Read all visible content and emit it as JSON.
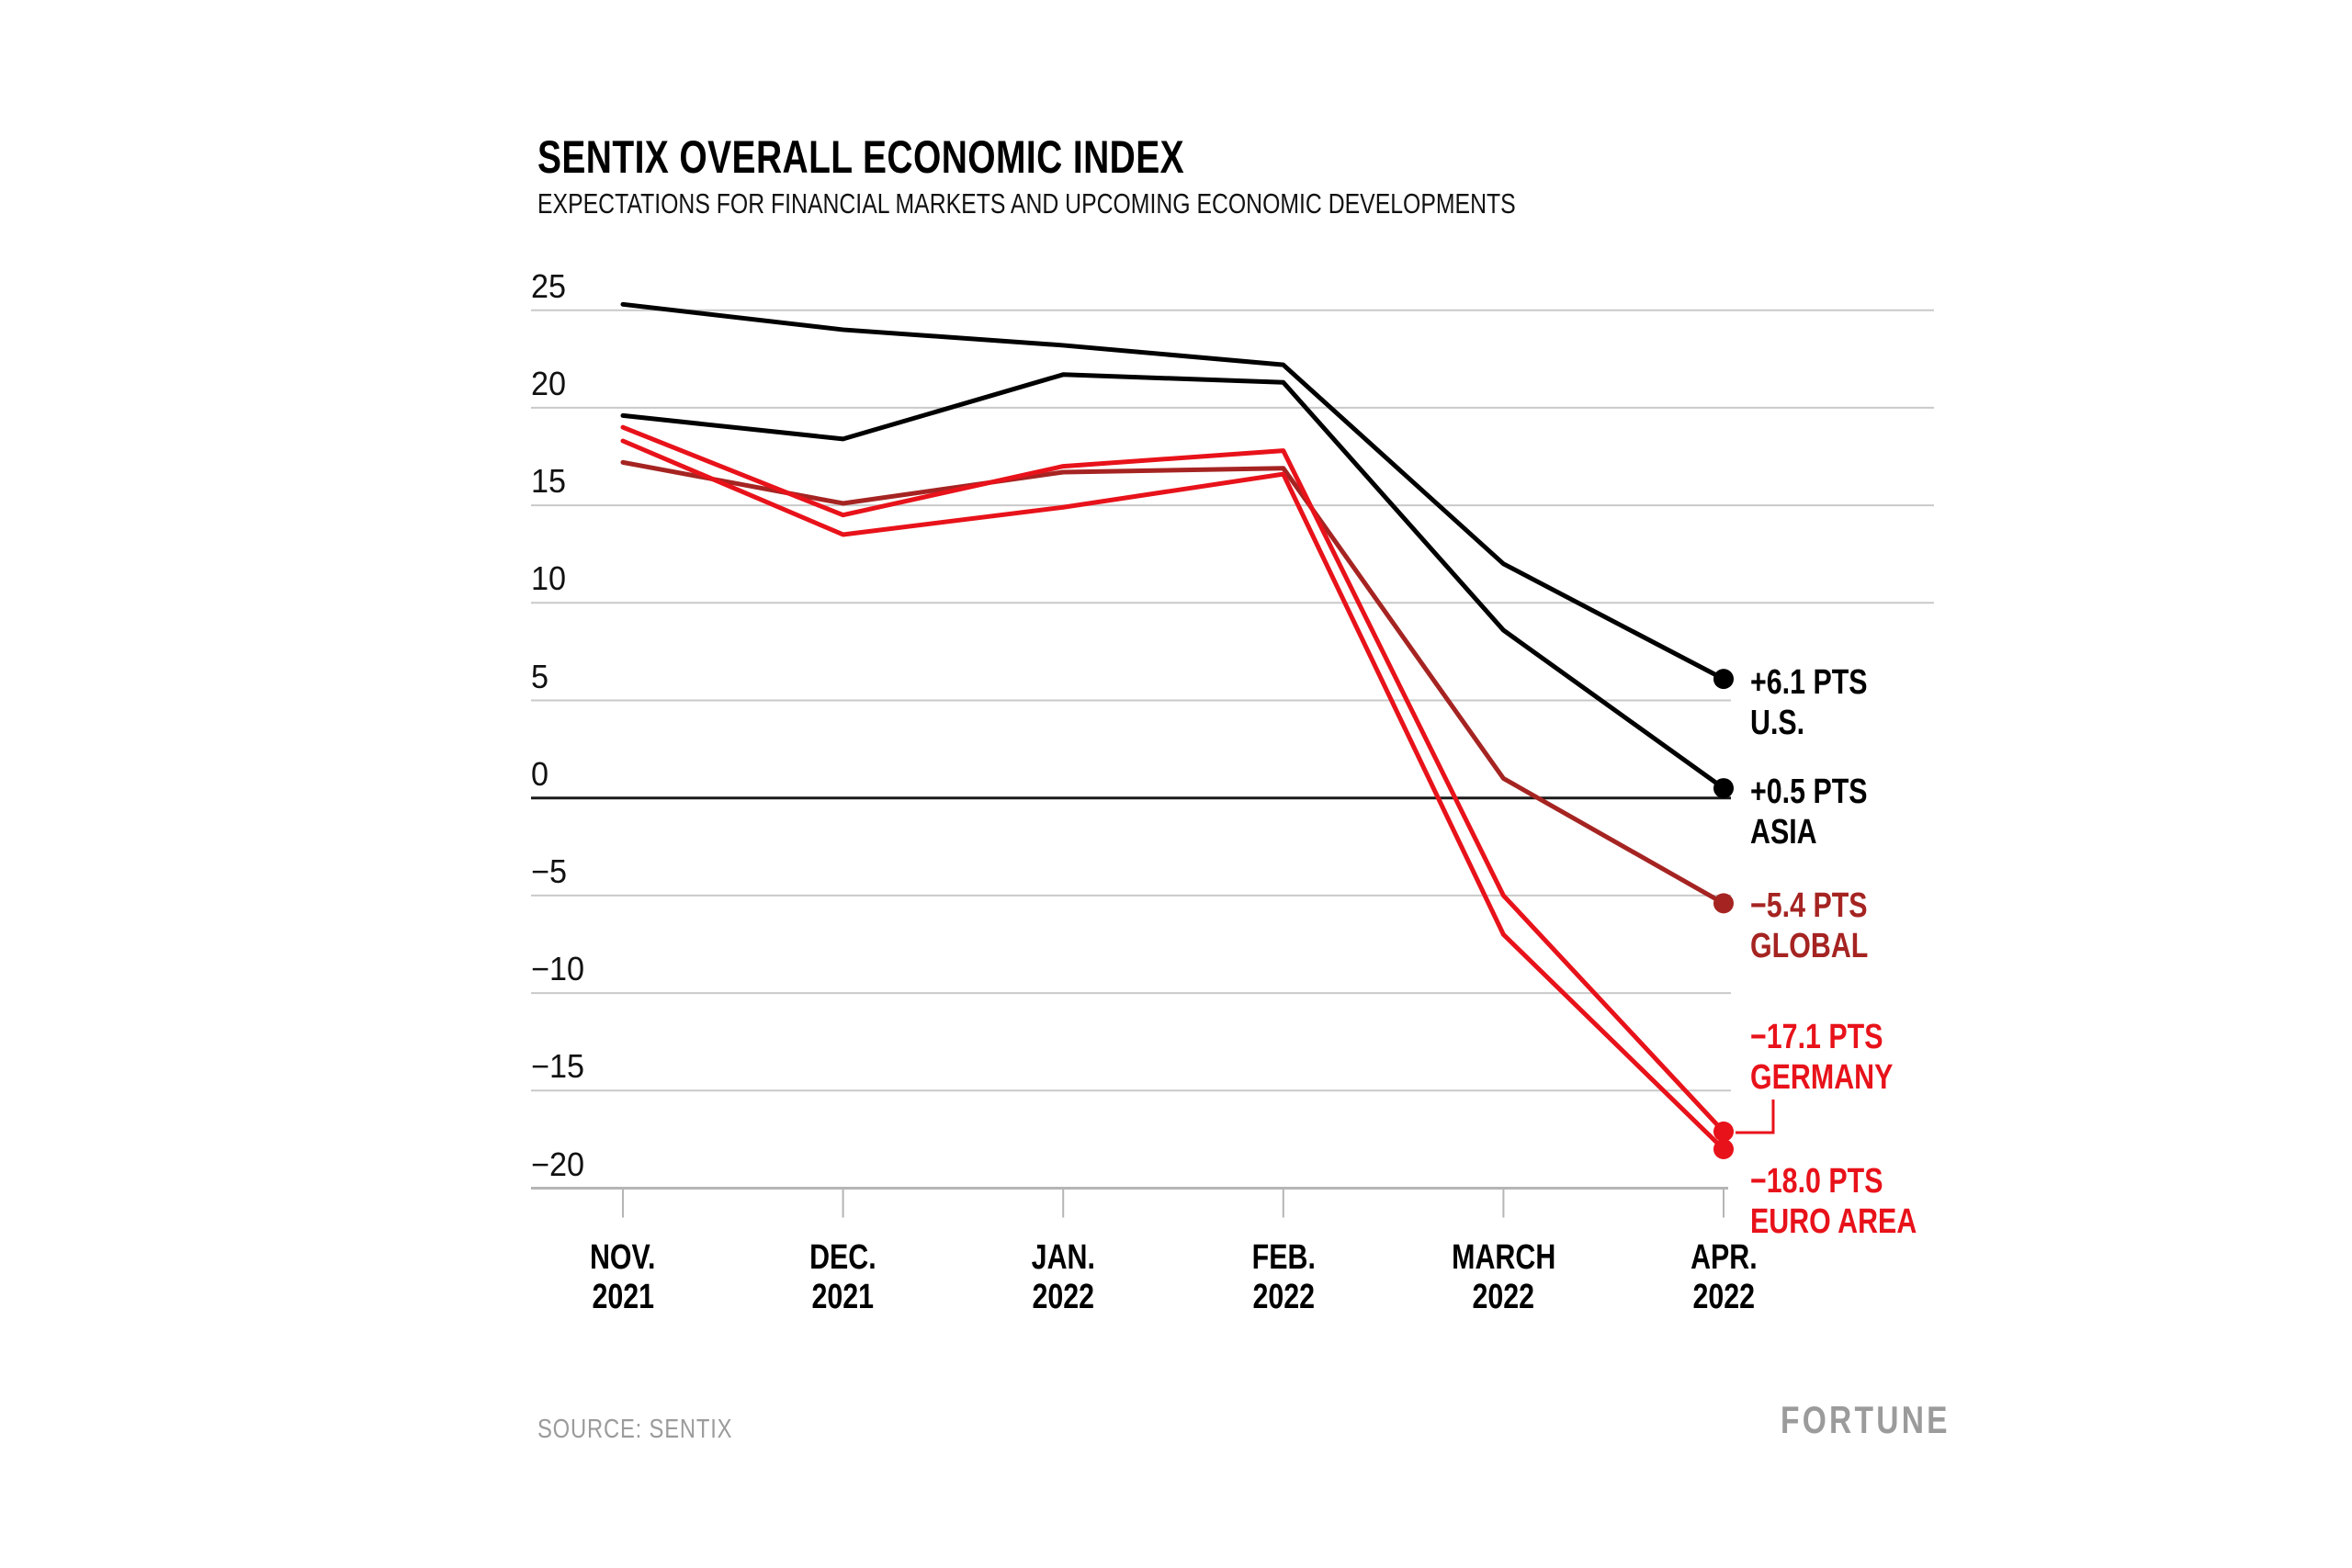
{
  "page": {
    "background": "#ffffff"
  },
  "header": {
    "title": "SENTIX OVERALL ECONOMIC INDEX",
    "subtitle": "EXPECTATIONS FOR FINANCIAL MARKETS AND UPCOMING ECONOMIC DEVELOPMENTS"
  },
  "footer": {
    "source": "SOURCE: SENTIX",
    "brand": "FORTUNE"
  },
  "colors": {
    "black_series": "#000000",
    "bright_red": "#e8121a",
    "dark_red": "#a52422",
    "gridline": "#c9c9c9",
    "zero_line": "#1a1a1a",
    "axis": "#b5b5b5",
    "muted_text": "#9b9b9b"
  },
  "chart_data": {
    "type": "line",
    "title": "SENTIX OVERALL ECONOMIC INDEX",
    "subtitle": "EXPECTATIONS FOR FINANCIAL MARKETS AND UPCOMING ECONOMIC DEVELOPMENTS",
    "categories": [
      "NOV. 2021",
      "DEC. 2021",
      "JAN. 2022",
      "FEB. 2022",
      "MARCH 2022",
      "APR. 2022"
    ],
    "x_tick_labels": [
      [
        "NOV.",
        "2021"
      ],
      [
        "DEC.",
        "2021"
      ],
      [
        "JAN.",
        "2022"
      ],
      [
        "FEB.",
        "2022"
      ],
      [
        "MARCH",
        "2022"
      ],
      [
        "APR.",
        "2022"
      ]
    ],
    "y_ticks": [
      25,
      20,
      15,
      10,
      5,
      0,
      -5,
      -10,
      -15,
      -20
    ],
    "ylim": [
      -20,
      25
    ],
    "grid": "horizontal",
    "legend_position": "right-end-labels",
    "source": "SENTIX",
    "series": [
      {
        "name": "U.S.",
        "color": "#000000",
        "values": [
          25.3,
          24.0,
          23.2,
          22.2,
          12.0,
          6.1
        ],
        "end_value": 6.1,
        "end_label": {
          "value_text": "+6.1 PTS",
          "name_text": "U.S."
        }
      },
      {
        "name": "ASIA",
        "color": "#000000",
        "values": [
          19.6,
          18.4,
          21.7,
          21.3,
          8.6,
          0.5
        ],
        "end_value": 0.5,
        "end_label": {
          "value_text": "+0.5 PTS",
          "name_text": "ASIA"
        }
      },
      {
        "name": "GLOBAL",
        "color": "#a52422",
        "values": [
          17.2,
          15.1,
          16.7,
          16.9,
          1.0,
          -5.4
        ],
        "end_value": -5.4,
        "end_label": {
          "value_text": "−5.4 PTS",
          "name_text": "GLOBAL"
        }
      },
      {
        "name": "GERMANY",
        "color": "#e8121a",
        "values": [
          19.0,
          14.5,
          17.0,
          17.8,
          -5.0,
          -17.1
        ],
        "end_value": -17.1,
        "end_label": {
          "value_text": "−17.1 PTS",
          "name_text": "GERMANY"
        }
      },
      {
        "name": "EURO AREA",
        "color": "#e8121a",
        "values": [
          18.3,
          13.5,
          14.9,
          16.6,
          -7.0,
          -18.0
        ],
        "end_value": -18.0,
        "end_label": {
          "value_text": "−18.0 PTS",
          "name_text": "EURO AREA"
        }
      }
    ]
  }
}
